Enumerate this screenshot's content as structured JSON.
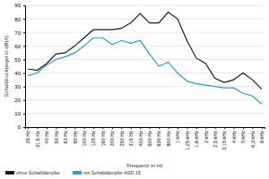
{
  "chart_data": {
    "type": "line",
    "x_label": "Frequenz in Hz",
    "y_label": "Schalldruckpegel in dB(A)",
    "categories": [
      "25 Hz",
      "31,5 Hz",
      "40 Hz",
      "50 Hz",
      "63 Hz",
      "80 Hz",
      "100 Hz",
      "125 Hz",
      "160 Hz",
      "200 Hz",
      "250 Hz",
      "315 Hz",
      "400 Hz",
      "500 Hz",
      "630 Hz",
      "800 Hz",
      "1 kHz",
      "1,25 kHz",
      "1,6 kHz",
      "2 kHz",
      "2,5 kHz",
      "3,15 kHz",
      "4 kHz",
      "5 kHz",
      "6,3 kHz",
      "8 kHz"
    ],
    "series": [
      {
        "name": "ohne Schalldämpfer",
        "color": "#1a1a1a",
        "values": [
          43,
          42,
          47,
          54,
          55,
          60,
          66,
          72,
          72,
          72,
          73,
          77,
          84,
          77,
          77,
          85,
          80,
          64,
          51,
          47,
          36,
          33,
          35,
          40,
          35,
          28
        ]
      },
      {
        "name": "mit Schalldämpfer ASD 15",
        "color": "#2e9bbf",
        "values": [
          38,
          40,
          46,
          50,
          52,
          55,
          60,
          66,
          66,
          61,
          64,
          62,
          64,
          54,
          45,
          48,
          40,
          34,
          32,
          31,
          30,
          29,
          29,
          25,
          23,
          17
        ]
      }
    ],
    "ylim": [
      0,
      90
    ],
    "yticks": [
      0,
      10,
      20,
      30,
      40,
      50,
      60,
      70,
      80,
      90
    ],
    "grid": true,
    "legend": "bottom"
  }
}
